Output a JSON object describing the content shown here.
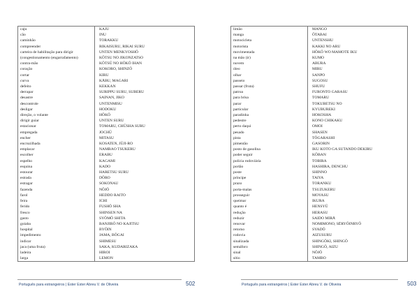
{
  "left_page": {
    "rows": [
      [
        "caju",
        "KAJU"
      ],
      [
        "cão",
        "INU"
      ],
      [
        "caminhão",
        "TORAKKU"
      ],
      [
        "compreender",
        "RIKAISURU, RIKAI SURU"
      ],
      [
        "carteira de habilitação para dirigir",
        "UNTEN MENKYOSHŌ"
      ],
      [
        "(congestionamento (engarrafamento)",
        "KŌTSU NO JIKONZATSO"
      ],
      [
        "contra-mão",
        "KŌTSŪ NO HŌKŌ IHAN"
      ],
      [
        "coração",
        "KOKORO, SHINZŌ"
      ],
      [
        "cortar",
        "KIRU"
      ],
      [
        "curva",
        "KĀBU, MAGARI"
      ],
      [
        "defeito",
        "KEKKAN"
      ],
      [
        "derrapar",
        "SURIPPU SURU, SUBERU"
      ],
      [
        "desastre",
        "SAINAN, JIKO"
      ],
      [
        "descontrole",
        "UNTENMISU"
      ],
      [
        "desligar",
        "HODOKU"
      ],
      [
        "direção, o volante",
        "HŌKŌ"
      ],
      [
        "dirigir guiar",
        "UNTEN SURU"
      ],
      [
        "estacionar",
        "TOMARU, CHŪSHA SURU"
      ],
      [
        "empregada",
        "JOCHŪ"
      ],
      [
        "encher",
        "MITASU"
      ],
      [
        "encruzilhada",
        "KOSATEN, JŪJI-RO"
      ],
      [
        "emplacar",
        "NAMBAO TSUKERU"
      ],
      [
        "escolher",
        "ERABU"
      ],
      [
        "espelho",
        "KAGAMI"
      ],
      [
        "esquina",
        "KADO"
      ],
      [
        "estourar",
        "HARETSU SURU"
      ],
      [
        "estrada",
        "DŌRO"
      ],
      [
        "estragar",
        "SOKONAU"
      ],
      [
        "fazenda",
        "NŌJŌ"
      ],
      [
        "farol",
        "HEDDO RAITO"
      ],
      [
        "feira",
        "ICHI"
      ],
      [
        "ferido",
        "FUSHŌ SHA"
      ],
      [
        "fresco",
        "SHINSEN NA"
      ],
      [
        "gasto",
        "SYŌMŌ SHITA"
      ],
      [
        "goiaba",
        "BANJIRŌ NO KAJITSU"
      ],
      [
        "hospital",
        "BYŌIN"
      ],
      [
        "impedimento",
        "JAMA, BŌGAI"
      ],
      [
        "indicar",
        "SHIMESU"
      ],
      [
        "jaca (uma fruta)",
        "SAKA, KUDARIZAKA"
      ],
      [
        "ladeira",
        "HIROI"
      ],
      [
        "larga",
        "LEMON"
      ]
    ],
    "footer": "Português para estrangeiros | Ester Ester Abreu V. de Oliveira",
    "page_number": "502"
  },
  "right_page": {
    "rows": [
      [
        "limão",
        "MANGO"
      ],
      [
        "manga",
        "ŌTABAI"
      ],
      [
        "motocicleta",
        "UNTENSHU"
      ],
      [
        "motorista",
        "KAKKI NO ARU"
      ],
      [
        "movimentada",
        "HŌKŌ WO MAMOTE IKU"
      ],
      [
        "na mão (ir)",
        "KUMO"
      ],
      [
        "nuvem",
        "ABURA"
      ],
      [
        "óleo",
        "MIRU"
      ],
      [
        "olhar",
        "SANPO"
      ],
      [
        "passeio",
        "SUGOSU"
      ],
      [
        "passar (fruta)",
        "SHUFU"
      ],
      [
        "patroa",
        "FURONTO GARASU"
      ],
      [
        "para brisa",
        "TOMARU"
      ],
      [
        "parar",
        "TOKUBETSU NO"
      ],
      [
        "particular",
        "KYUBUREKI"
      ],
      [
        "paradinha",
        "HOKOSHA"
      ],
      [
        "pedestre",
        "KONO CHIKAKU"
      ],
      [
        "perto daqui",
        "OMOI"
      ],
      [
        "pesado",
        "SHASEN"
      ],
      [
        "pista",
        "TŌGARASHI"
      ],
      [
        "pimentão",
        "GASORIN"
      ],
      [
        "posto de gasolina",
        "IKU KOTO GA SUTANDO DEKIRU"
      ],
      [
        "poder seguir",
        "KŌBAN"
      ],
      [
        "polícia rodoviária",
        "TOBIRA"
      ],
      [
        "portão",
        "HASHIRA, DENCHU"
      ],
      [
        "poste",
        "SHINNO"
      ],
      [
        "príncipe",
        "TAIYA"
      ],
      [
        "prazo",
        "TORANKU"
      ],
      [
        "porta-malas",
        "TSUZUKERU"
      ],
      [
        "prosseguir",
        "MOYASU"
      ],
      [
        "queimar",
        "IKURA"
      ],
      [
        "quanto é",
        "HENSYŪ"
      ],
      [
        "redução",
        "HERASU"
      ],
      [
        "reduzir",
        "SAIDO MIRĀ"
      ],
      [
        "renovar",
        "NOMIMONO, SĒRYŌINRYŌ"
      ],
      [
        "retorno",
        "SYADŌ"
      ],
      [
        "rodovia",
        "AIZUSURU"
      ],
      [
        "sinalizada",
        "SHINGŌKI, SHINGŌ"
      ],
      [
        "semáforo",
        "SHINGŌ, AIZU"
      ],
      [
        "sinal",
        "NŌJŌ"
      ],
      [
        "sítio",
        "TAMBO"
      ]
    ],
    "footer": "Português para estrangeiros | Ester Ester Abreu V. de Oliveira",
    "page_number": "503"
  }
}
